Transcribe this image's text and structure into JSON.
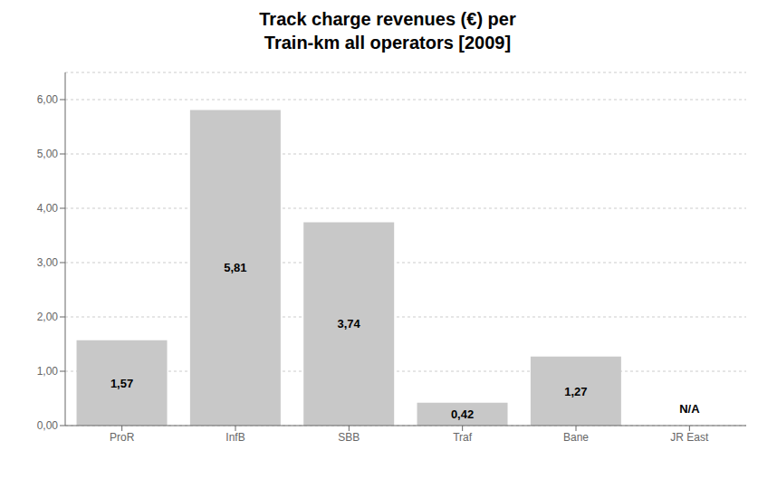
{
  "chart_data": {
    "type": "bar",
    "title": "Track charge revenues (€) per\nTrain-km all operators [2009]",
    "categories": [
      "ProR",
      "InfB",
      "SBB",
      "Traf",
      "Bane",
      "JR East"
    ],
    "values": [
      1.57,
      5.81,
      3.74,
      0.42,
      1.27,
      null
    ],
    "value_labels": [
      "1,57",
      "5,81",
      "3,74",
      "0,42",
      "1,27",
      "N/A"
    ],
    "data_labels": true,
    "color": "#c8c8c8",
    "ylim": [
      0,
      6.5
    ],
    "yticks": [
      {
        "value": 0,
        "label": "0,00"
      },
      {
        "value": 1,
        "label": "1,00"
      },
      {
        "value": 2,
        "label": "2,00"
      },
      {
        "value": 3,
        "label": "3,00"
      },
      {
        "value": 4,
        "label": "4,00"
      },
      {
        "value": 5,
        "label": "5,00"
      },
      {
        "value": 6,
        "label": "6,00"
      }
    ],
    "grid": true
  }
}
